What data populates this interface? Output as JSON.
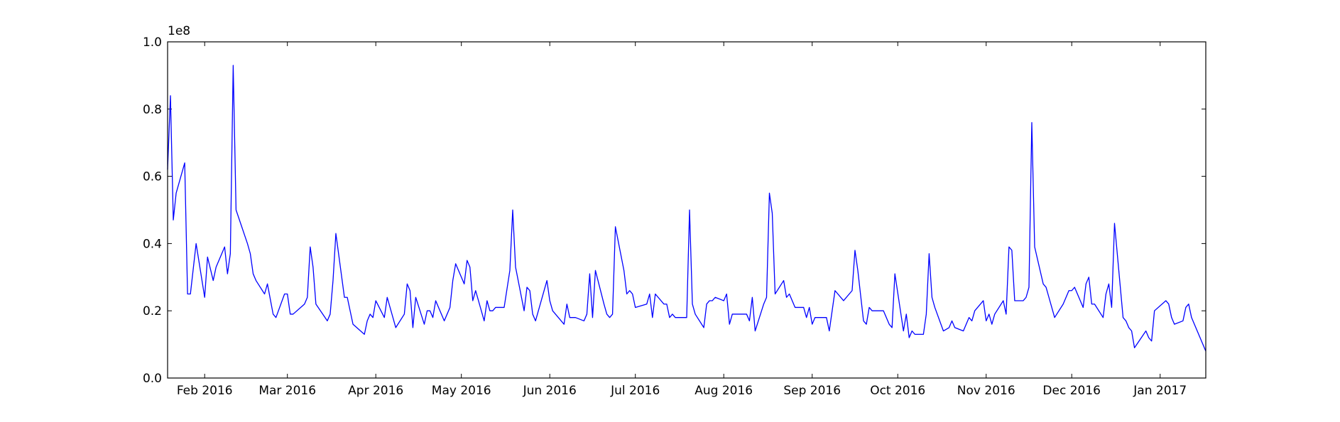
{
  "chart_data": {
    "type": "line",
    "color": "#0000ff",
    "y_offset_label": "1e8",
    "xlim": [
      18,
      382
    ],
    "ylim": [
      0,
      1
    ],
    "yticks": [
      {
        "value": 0,
        "label": "0.0"
      },
      {
        "value": 0.2,
        "label": "0.2"
      },
      {
        "value": 0.4,
        "label": "0.4"
      },
      {
        "value": 0.6,
        "label": "0.6"
      },
      {
        "value": 0.8,
        "label": "0.8"
      },
      {
        "value": 1,
        "label": "1.0"
      }
    ],
    "xticks": [
      {
        "value": 31,
        "label": "Feb 2016"
      },
      {
        "value": 60,
        "label": "Mar 2016"
      },
      {
        "value": 91,
        "label": "Apr 2016"
      },
      {
        "value": 121,
        "label": "May 2016"
      },
      {
        "value": 152,
        "label": "Jun 2016"
      },
      {
        "value": 182,
        "label": "Jul 2016"
      },
      {
        "value": 213,
        "label": "Aug 2016"
      },
      {
        "value": 244,
        "label": "Sep 2016"
      },
      {
        "value": 274,
        "label": "Oct 2016"
      },
      {
        "value": 305,
        "label": "Nov 2016"
      },
      {
        "value": 335,
        "label": "Dec 2016"
      },
      {
        "value": 366,
        "label": "Jan 2017"
      }
    ],
    "x": [
      18,
      19,
      20,
      21,
      24,
      25,
      26,
      28,
      31,
      32,
      34,
      35,
      38,
      39,
      40,
      41,
      42,
      46,
      47,
      48,
      49,
      52,
      53,
      55,
      56,
      59,
      60,
      61,
      62,
      66,
      67,
      68,
      69,
      70,
      74,
      75,
      76,
      77,
      80,
      81,
      83,
      87,
      88,
      89,
      90,
      91,
      94,
      95,
      98,
      101,
      102,
      103,
      104,
      105,
      108,
      109,
      110,
      111,
      112,
      115,
      116,
      117,
      118,
      119,
      122,
      123,
      124,
      125,
      126,
      129,
      130,
      131,
      132,
      133,
      136,
      138,
      139,
      140,
      143,
      144,
      145,
      146,
      147,
      151,
      152,
      153,
      157,
      158,
      159,
      160,
      161,
      164,
      165,
      166,
      167,
      168,
      171,
      172,
      173,
      174,
      175,
      178,
      179,
      180,
      181,
      182,
      186,
      187,
      188,
      189,
      192,
      193,
      194,
      195,
      196,
      199,
      200,
      201,
      202,
      203,
      206,
      207,
      208,
      209,
      210,
      213,
      214,
      215,
      216,
      217,
      221,
      222,
      223,
      224,
      227,
      228,
      229,
      230,
      231,
      234,
      235,
      236,
      238,
      241,
      242,
      243,
      244,
      245,
      249,
      250,
      252,
      255,
      258,
      259,
      260,
      262,
      263,
      264,
      265,
      269,
      271,
      272,
      273,
      276,
      277,
      278,
      279,
      280,
      283,
      284,
      285,
      286,
      287,
      290,
      292,
      293,
      294,
      297,
      299,
      300,
      301,
      304,
      305,
      306,
      307,
      308,
      311,
      312,
      313,
      314,
      315,
      318,
      319,
      320,
      321,
      322,
      325,
      326,
      327,
      329,
      332,
      334,
      335,
      336,
      339,
      340,
      341,
      342,
      343,
      346,
      347,
      348,
      349,
      350,
      353,
      354,
      355,
      356,
      357,
      361,
      362,
      363,
      364,
      368,
      369,
      370,
      371,
      374,
      375,
      376,
      377,
      378,
      382
    ],
    "values": [
      0.62,
      0.84,
      0.47,
      0.55,
      0.64,
      0.25,
      0.25,
      0.4,
      0.24,
      0.36,
      0.29,
      0.33,
      0.39,
      0.31,
      0.37,
      0.93,
      0.5,
      0.4,
      0.37,
      0.31,
      0.29,
      0.25,
      0.28,
      0.19,
      0.18,
      0.25,
      0.25,
      0.19,
      0.19,
      0.22,
      0.24,
      0.39,
      0.33,
      0.22,
      0.17,
      0.19,
      0.29,
      0.43,
      0.24,
      0.24,
      0.16,
      0.13,
      0.17,
      0.19,
      0.18,
      0.23,
      0.18,
      0.24,
      0.15,
      0.19,
      0.28,
      0.26,
      0.15,
      0.24,
      0.16,
      0.2,
      0.2,
      0.18,
      0.23,
      0.17,
      0.19,
      0.21,
      0.29,
      0.34,
      0.28,
      0.35,
      0.33,
      0.23,
      0.26,
      0.17,
      0.23,
      0.2,
      0.2,
      0.21,
      0.21,
      0.32,
      0.5,
      0.33,
      0.2,
      0.27,
      0.26,
      0.19,
      0.17,
      0.29,
      0.23,
      0.2,
      0.16,
      0.22,
      0.18,
      0.18,
      0.18,
      0.17,
      0.19,
      0.31,
      0.18,
      0.32,
      0.22,
      0.19,
      0.18,
      0.19,
      0.45,
      0.32,
      0.25,
      0.26,
      0.25,
      0.21,
      0.22,
      0.25,
      0.18,
      0.25,
      0.22,
      0.22,
      0.18,
      0.19,
      0.18,
      0.18,
      0.18,
      0.5,
      0.22,
      0.19,
      0.15,
      0.22,
      0.23,
      0.23,
      0.24,
      0.23,
      0.25,
      0.16,
      0.19,
      0.19,
      0.19,
      0.17,
      0.24,
      0.14,
      0.22,
      0.24,
      0.55,
      0.49,
      0.25,
      0.29,
      0.24,
      0.25,
      0.21,
      0.21,
      0.18,
      0.21,
      0.16,
      0.18,
      0.18,
      0.14,
      0.26,
      0.23,
      0.26,
      0.38,
      0.32,
      0.17,
      0.16,
      0.21,
      0.2,
      0.2,
      0.16,
      0.15,
      0.31,
      0.14,
      0.19,
      0.12,
      0.14,
      0.13,
      0.13,
      0.19,
      0.37,
      0.24,
      0.21,
      0.14,
      0.15,
      0.17,
      0.15,
      0.14,
      0.18,
      0.17,
      0.2,
      0.23,
      0.17,
      0.19,
      0.16,
      0.19,
      0.23,
      0.19,
      0.39,
      0.38,
      0.23,
      0.23,
      0.24,
      0.27,
      0.76,
      0.39,
      0.28,
      0.27,
      0.24,
      0.18,
      0.22,
      0.26,
      0.26,
      0.27,
      0.21,
      0.28,
      0.3,
      0.22,
      0.22,
      0.18,
      0.25,
      0.28,
      0.21,
      0.46,
      0.18,
      0.17,
      0.15,
      0.14,
      0.09,
      0.14,
      0.12,
      0.11,
      0.2,
      0.23,
      0.22,
      0.18,
      0.16,
      0.17,
      0.21,
      0.22,
      0.18,
      0.16,
      0.08
    ]
  }
}
